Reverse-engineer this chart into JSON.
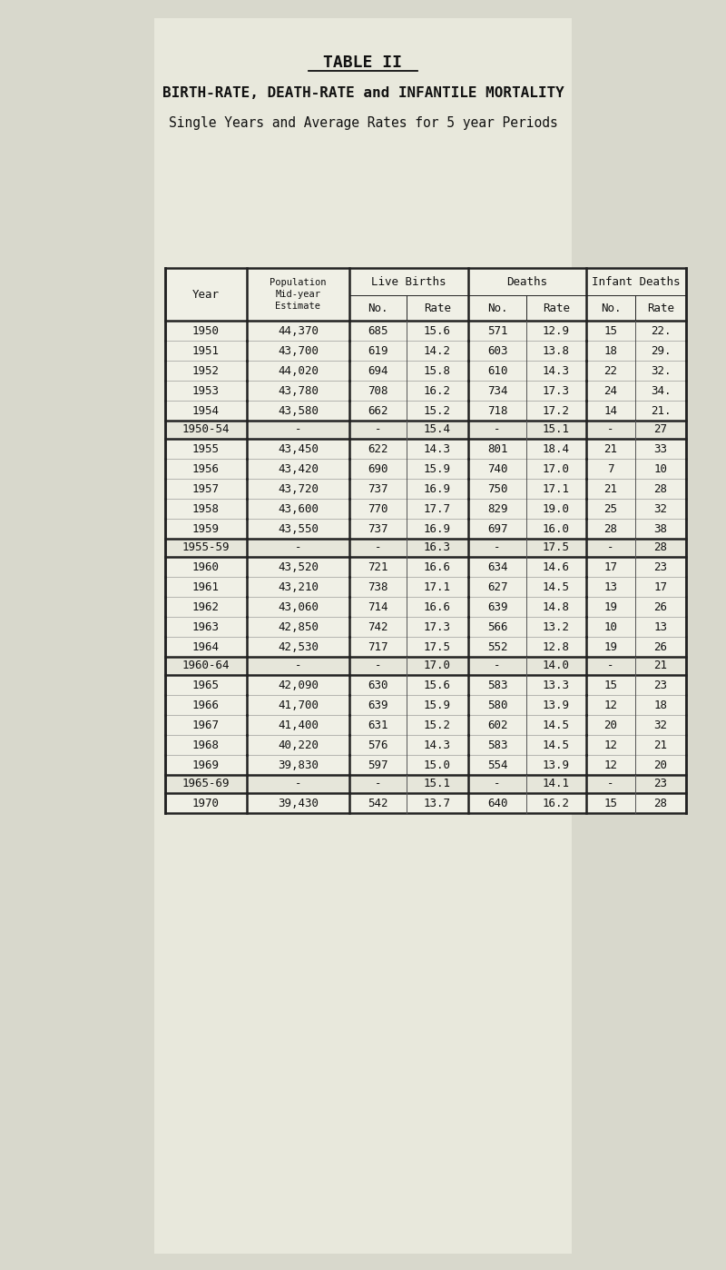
{
  "title1": "TABLE II",
  "title2": "BIRTH-RATE, DEATH-RATE and INFANTILE MORTALITY",
  "title3": "Single Years and Average Rates for 5 year Periods",
  "bg_color": "#d8d8cc",
  "rows": [
    [
      "1950",
      "44,370",
      "685",
      "15.6",
      "571",
      "12.9",
      "15",
      "22."
    ],
    [
      "1951",
      "43,700",
      "619",
      "14.2",
      "603",
      "13.8",
      "18",
      "29."
    ],
    [
      "1952",
      "44,020",
      "694",
      "15.8",
      "610",
      "14.3",
      "22",
      "32."
    ],
    [
      "1953",
      "43,780",
      "708",
      "16.2",
      "734",
      "17.3",
      "24",
      "34."
    ],
    [
      "1954",
      "43,580",
      "662",
      "15.2",
      "718",
      "17.2",
      "14",
      "21."
    ],
    [
      "1950-54",
      "-",
      "-",
      "15.4",
      "-",
      "15.1",
      "-",
      "27"
    ],
    [
      "1955",
      "43,450",
      "622",
      "14.3",
      "801",
      "18.4",
      "21",
      "33"
    ],
    [
      "1956",
      "43,420",
      "690",
      "15.9",
      "740",
      "17.0",
      "7",
      "10"
    ],
    [
      "1957",
      "43,720",
      "737",
      "16.9",
      "750",
      "17.1",
      "21",
      "28"
    ],
    [
      "1958",
      "43,600",
      "770",
      "17.7",
      "829",
      "19.0",
      "25",
      "32"
    ],
    [
      "1959",
      "43,550",
      "737",
      "16.9",
      "697",
      "16.0",
      "28",
      "38"
    ],
    [
      "1955-59",
      "-",
      "-",
      "16.3",
      "-",
      "17.5",
      "-",
      "28"
    ],
    [
      "1960",
      "43,520",
      "721",
      "16.6",
      "634",
      "14.6",
      "17",
      "23"
    ],
    [
      "1961",
      "43,210",
      "738",
      "17.1",
      "627",
      "14.5",
      "13",
      "17"
    ],
    [
      "1962",
      "43,060",
      "714",
      "16.6",
      "639",
      "14.8",
      "19",
      "26"
    ],
    [
      "1963",
      "42,850",
      "742",
      "17.3",
      "566",
      "13.2",
      "10",
      "13"
    ],
    [
      "1964",
      "42,530",
      "717",
      "17.5",
      "552",
      "12.8",
      "19",
      "26"
    ],
    [
      "1960-64",
      "-",
      "-",
      "17.0",
      "-",
      "14.0",
      "-",
      "21"
    ],
    [
      "1965",
      "42,090",
      "630",
      "15.6",
      "583",
      "13.3",
      "15",
      "23"
    ],
    [
      "1966",
      "41,700",
      "639",
      "15.9",
      "580",
      "13.9",
      "12",
      "18"
    ],
    [
      "1967",
      "41,400",
      "631",
      "15.2",
      "602",
      "14.5",
      "20",
      "32"
    ],
    [
      "1968",
      "40,220",
      "576",
      "14.3",
      "583",
      "14.5",
      "12",
      "21"
    ],
    [
      "1969",
      "39,830",
      "597",
      "15.0",
      "554",
      "13.9",
      "12",
      "20"
    ],
    [
      "1965-69",
      "-",
      "-",
      "15.1",
      "-",
      "14.1",
      "-",
      "23"
    ],
    [
      "1970",
      "39,430",
      "542",
      "13.7",
      "640",
      "16.2",
      "15",
      "28"
    ]
  ],
  "period_row_indices": [
    5,
    11,
    17,
    23
  ],
  "last_row_index": 24
}
